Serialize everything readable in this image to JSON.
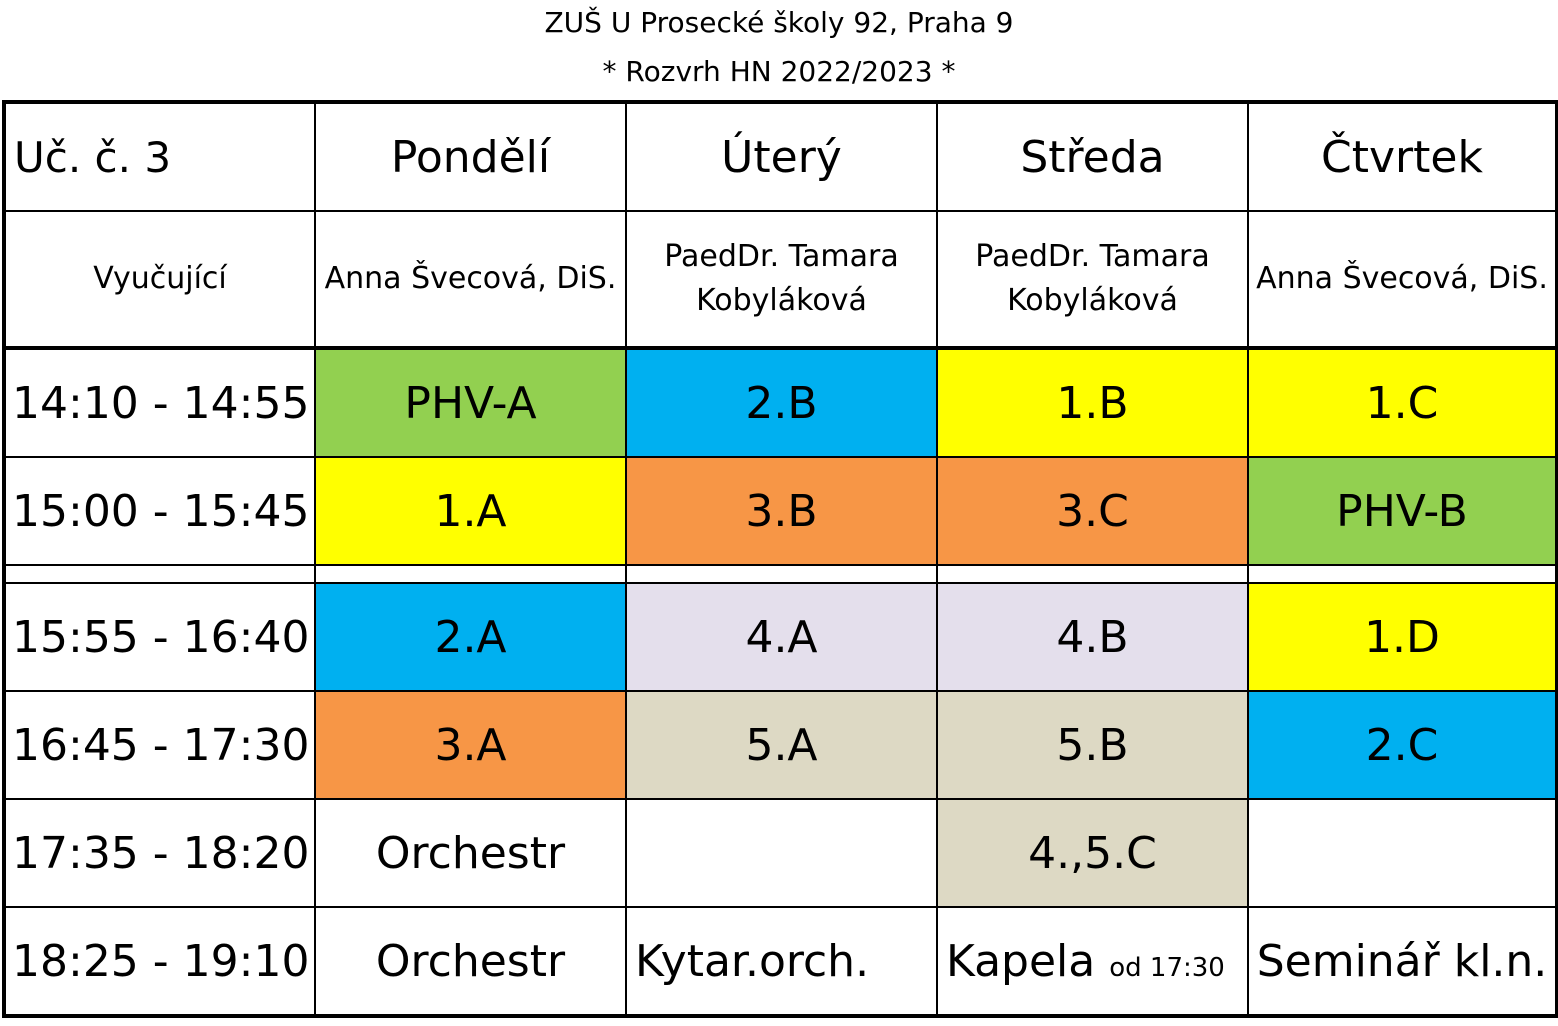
{
  "header": {
    "line1": "ZUŠ U Prosecké školy 92, Praha 9",
    "line2": "* Rozvrh HN 2022/2023 *"
  },
  "table": {
    "corner": "Uč. č. 3",
    "days": [
      "Pondělí",
      "Úterý",
      "Středa",
      "Čtvrtek"
    ],
    "teacher_label": "Vyučující",
    "teachers": [
      {
        "line1": "Anna Švecová, DiS.",
        "line2": ""
      },
      {
        "line1": "PaedDr. Tamara",
        "line2": "Kobyláková"
      },
      {
        "line1": "PaedDr. Tamara",
        "line2": "Kobyláková"
      },
      {
        "line1": "Anna Švecová, DiS.",
        "line2": ""
      }
    ],
    "slots": [
      {
        "time": "14:10 - 14:55",
        "cells": [
          {
            "text": "PHV-A",
            "color": "#92d050"
          },
          {
            "text": "2.B",
            "color": "#00b0f0"
          },
          {
            "text": "1.B",
            "color": "#ffff00"
          },
          {
            "text": "1.C",
            "color": "#ffff00"
          }
        ]
      },
      {
        "time": "15:00 - 15:45",
        "cells": [
          {
            "text": "1.A",
            "color": "#ffff00"
          },
          {
            "text": "3.B",
            "color": "#f79646"
          },
          {
            "text": "3.C",
            "color": "#f79646"
          },
          {
            "text": "PHV-B",
            "color": "#92d050"
          }
        ]
      },
      {
        "time": "15:55 - 16:40",
        "cells": [
          {
            "text": "2.A",
            "color": "#00b0f0"
          },
          {
            "text": "4.A",
            "color": "#e4dfec"
          },
          {
            "text": "4.B",
            "color": "#e4dfec"
          },
          {
            "text": "1.D",
            "color": "#ffff00"
          }
        ]
      },
      {
        "time": "16:45 - 17:30",
        "cells": [
          {
            "text": "3.A",
            "color": "#f79646"
          },
          {
            "text": "5.A",
            "color": "#ddd9c4"
          },
          {
            "text": "5.B",
            "color": "#ddd9c4"
          },
          {
            "text": "2.C",
            "color": "#00b0f0"
          }
        ]
      },
      {
        "time": "17:35 - 18:20",
        "cells": [
          {
            "text": "Orchestr",
            "color": "#ffffff"
          },
          {
            "text": "",
            "color": "#ffffff"
          },
          {
            "text": "4.,5.C",
            "color": "#ddd9c4"
          },
          {
            "text": "",
            "color": "#ffffff"
          }
        ]
      },
      {
        "time": "18:25 - 19:10",
        "cells": [
          {
            "text": "Orchestr",
            "color": "#ffffff"
          },
          {
            "text": "Kytar.orch.",
            "color": "#ffffff"
          },
          {
            "text": "Kapela",
            "note": "od 17:30",
            "color": "#ffffff"
          },
          {
            "text": "Seminář kl.n.",
            "color": "#ffffff"
          }
        ]
      }
    ]
  }
}
